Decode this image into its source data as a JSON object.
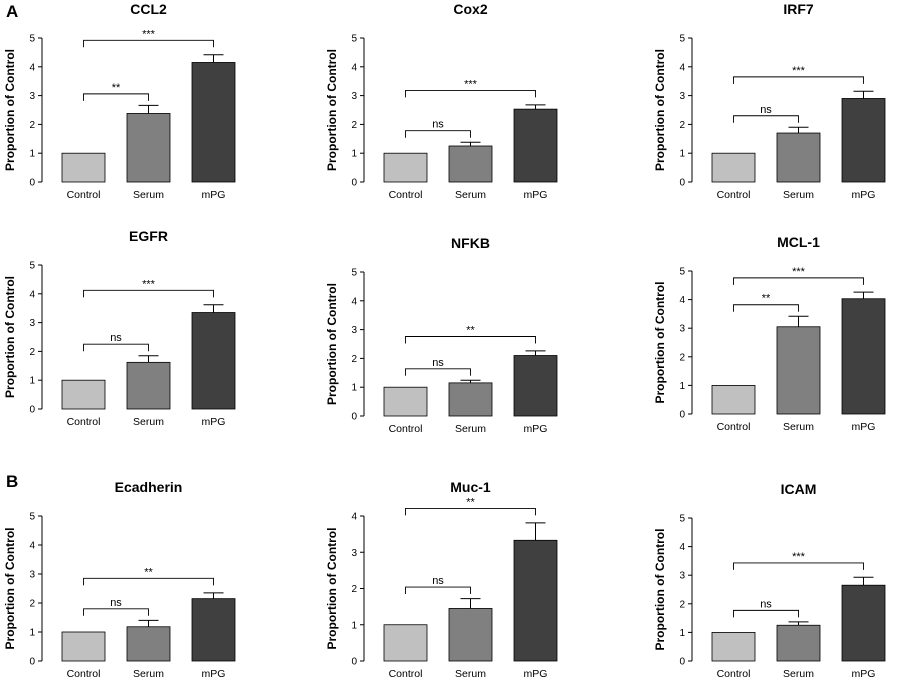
{
  "panel_labels": [
    "A",
    "B"
  ],
  "colors": {
    "control": "#c0c0c0",
    "serum": "#808080",
    "mpg": "#404040",
    "axis": "#000000"
  },
  "chart_data": [
    {
      "type": "bar",
      "title": "CCL2",
      "ylabel": "Proportion of Control",
      "xlabel": "",
      "categories": [
        "Control",
        "Serum",
        "mPG"
      ],
      "values": [
        1.0,
        2.38,
        4.15
      ],
      "errors": [
        0,
        0.28,
        0.27
      ],
      "ylim": [
        0,
        5
      ],
      "yticks": [
        "0",
        "1",
        "2",
        "3",
        "4",
        "5"
      ],
      "annotations": [
        {
          "from": 0,
          "to": 1,
          "label": "**"
        },
        {
          "from": 0,
          "to": 2,
          "label": "***"
        }
      ]
    },
    {
      "type": "bar",
      "title": "Cox2",
      "ylabel": "Proportion of Control",
      "xlabel": "",
      "categories": [
        "Control",
        "Serum",
        "mPG"
      ],
      "values": [
        1.0,
        1.25,
        2.53
      ],
      "errors": [
        0,
        0.13,
        0.15
      ],
      "ylim": [
        0,
        5
      ],
      "yticks": [
        "0",
        "1",
        "2",
        "3",
        "4",
        "5"
      ],
      "annotations": [
        {
          "from": 0,
          "to": 1,
          "label": "ns"
        },
        {
          "from": 0,
          "to": 2,
          "label": "***"
        }
      ]
    },
    {
      "type": "bar",
      "title": "IRF7",
      "ylabel": "Proportion of Control",
      "xlabel": "",
      "categories": [
        "Control",
        "Serum",
        "mPG"
      ],
      "values": [
        1.0,
        1.7,
        2.9
      ],
      "errors": [
        0,
        0.2,
        0.25
      ],
      "ylim": [
        0,
        5
      ],
      "yticks": [
        "0",
        "1",
        "2",
        "3",
        "4",
        "5"
      ],
      "annotations": [
        {
          "from": 0,
          "to": 1,
          "label": "ns"
        },
        {
          "from": 0,
          "to": 2,
          "label": "***"
        }
      ]
    },
    {
      "type": "bar",
      "title": "EGFR",
      "ylabel": "Proportion of Control",
      "xlabel": "",
      "categories": [
        "Control",
        "Serum",
        "mPG"
      ],
      "values": [
        1.0,
        1.62,
        3.35
      ],
      "errors": [
        0,
        0.23,
        0.27
      ],
      "ylim": [
        0,
        5
      ],
      "yticks": [
        "0",
        "1",
        "2",
        "3",
        "4",
        "5"
      ],
      "annotations": [
        {
          "from": 0,
          "to": 1,
          "label": "ns"
        },
        {
          "from": 0,
          "to": 2,
          "label": "***"
        }
      ]
    },
    {
      "type": "bar",
      "title": "NFKB",
      "ylabel": "Proportion of Control",
      "xlabel": "",
      "categories": [
        "Control",
        "Serum",
        "mPG"
      ],
      "values": [
        1.0,
        1.15,
        2.1
      ],
      "errors": [
        0,
        0.09,
        0.16
      ],
      "ylim": [
        0,
        5
      ],
      "yticks": [
        "0",
        "1",
        "2",
        "3",
        "4",
        "5"
      ],
      "annotations": [
        {
          "from": 0,
          "to": 1,
          "label": "ns"
        },
        {
          "from": 0,
          "to": 2,
          "label": "**"
        }
      ]
    },
    {
      "type": "bar",
      "title": "MCL-1",
      "ylabel": "Proportion of Control",
      "xlabel": "",
      "categories": [
        "Control",
        "Serum",
        "mPG"
      ],
      "values": [
        1.0,
        3.05,
        4.03
      ],
      "errors": [
        0,
        0.37,
        0.23
      ],
      "ylim": [
        0,
        5
      ],
      "yticks": [
        "0",
        "1",
        "2",
        "3",
        "4",
        "5"
      ],
      "annotations": [
        {
          "from": 0,
          "to": 1,
          "label": "**"
        },
        {
          "from": 0,
          "to": 2,
          "label": "***"
        }
      ]
    },
    {
      "type": "bar",
      "title": "Ecadherin",
      "ylabel": "Proportion of Control",
      "xlabel": "",
      "categories": [
        "Control",
        "Serum",
        "mPG"
      ],
      "values": [
        1.0,
        1.18,
        2.15
      ],
      "errors": [
        0,
        0.22,
        0.2
      ],
      "ylim": [
        0,
        5
      ],
      "yticks": [
        "0",
        "1",
        "2",
        "3",
        "4",
        "5"
      ],
      "annotations": [
        {
          "from": 0,
          "to": 1,
          "label": "ns"
        },
        {
          "from": 0,
          "to": 2,
          "label": "**"
        }
      ]
    },
    {
      "type": "bar",
      "title": "Muc-1",
      "ylabel": "Proportion of Control",
      "xlabel": "",
      "categories": [
        "Control",
        "Serum",
        "mPG"
      ],
      "values": [
        1.0,
        1.45,
        3.33
      ],
      "errors": [
        0,
        0.27,
        0.48
      ],
      "ylim": [
        0,
        4
      ],
      "yticks": [
        "0",
        "1",
        "2",
        "3",
        "4"
      ],
      "annotations": [
        {
          "from": 0,
          "to": 1,
          "label": "ns"
        },
        {
          "from": 0,
          "to": 2,
          "label": "**"
        }
      ]
    },
    {
      "type": "bar",
      "title": "ICAM",
      "ylabel": "Proportion of Control",
      "xlabel": "",
      "categories": [
        "Control",
        "Serum",
        "mPG"
      ],
      "values": [
        1.0,
        1.25,
        2.65
      ],
      "errors": [
        0,
        0.12,
        0.28
      ],
      "ylim": [
        0,
        5
      ],
      "yticks": [
        "0",
        "1",
        "2",
        "3",
        "4",
        "5"
      ],
      "annotations": [
        {
          "from": 0,
          "to": 1,
          "label": "ns"
        },
        {
          "from": 0,
          "to": 2,
          "label": "***"
        }
      ]
    }
  ]
}
